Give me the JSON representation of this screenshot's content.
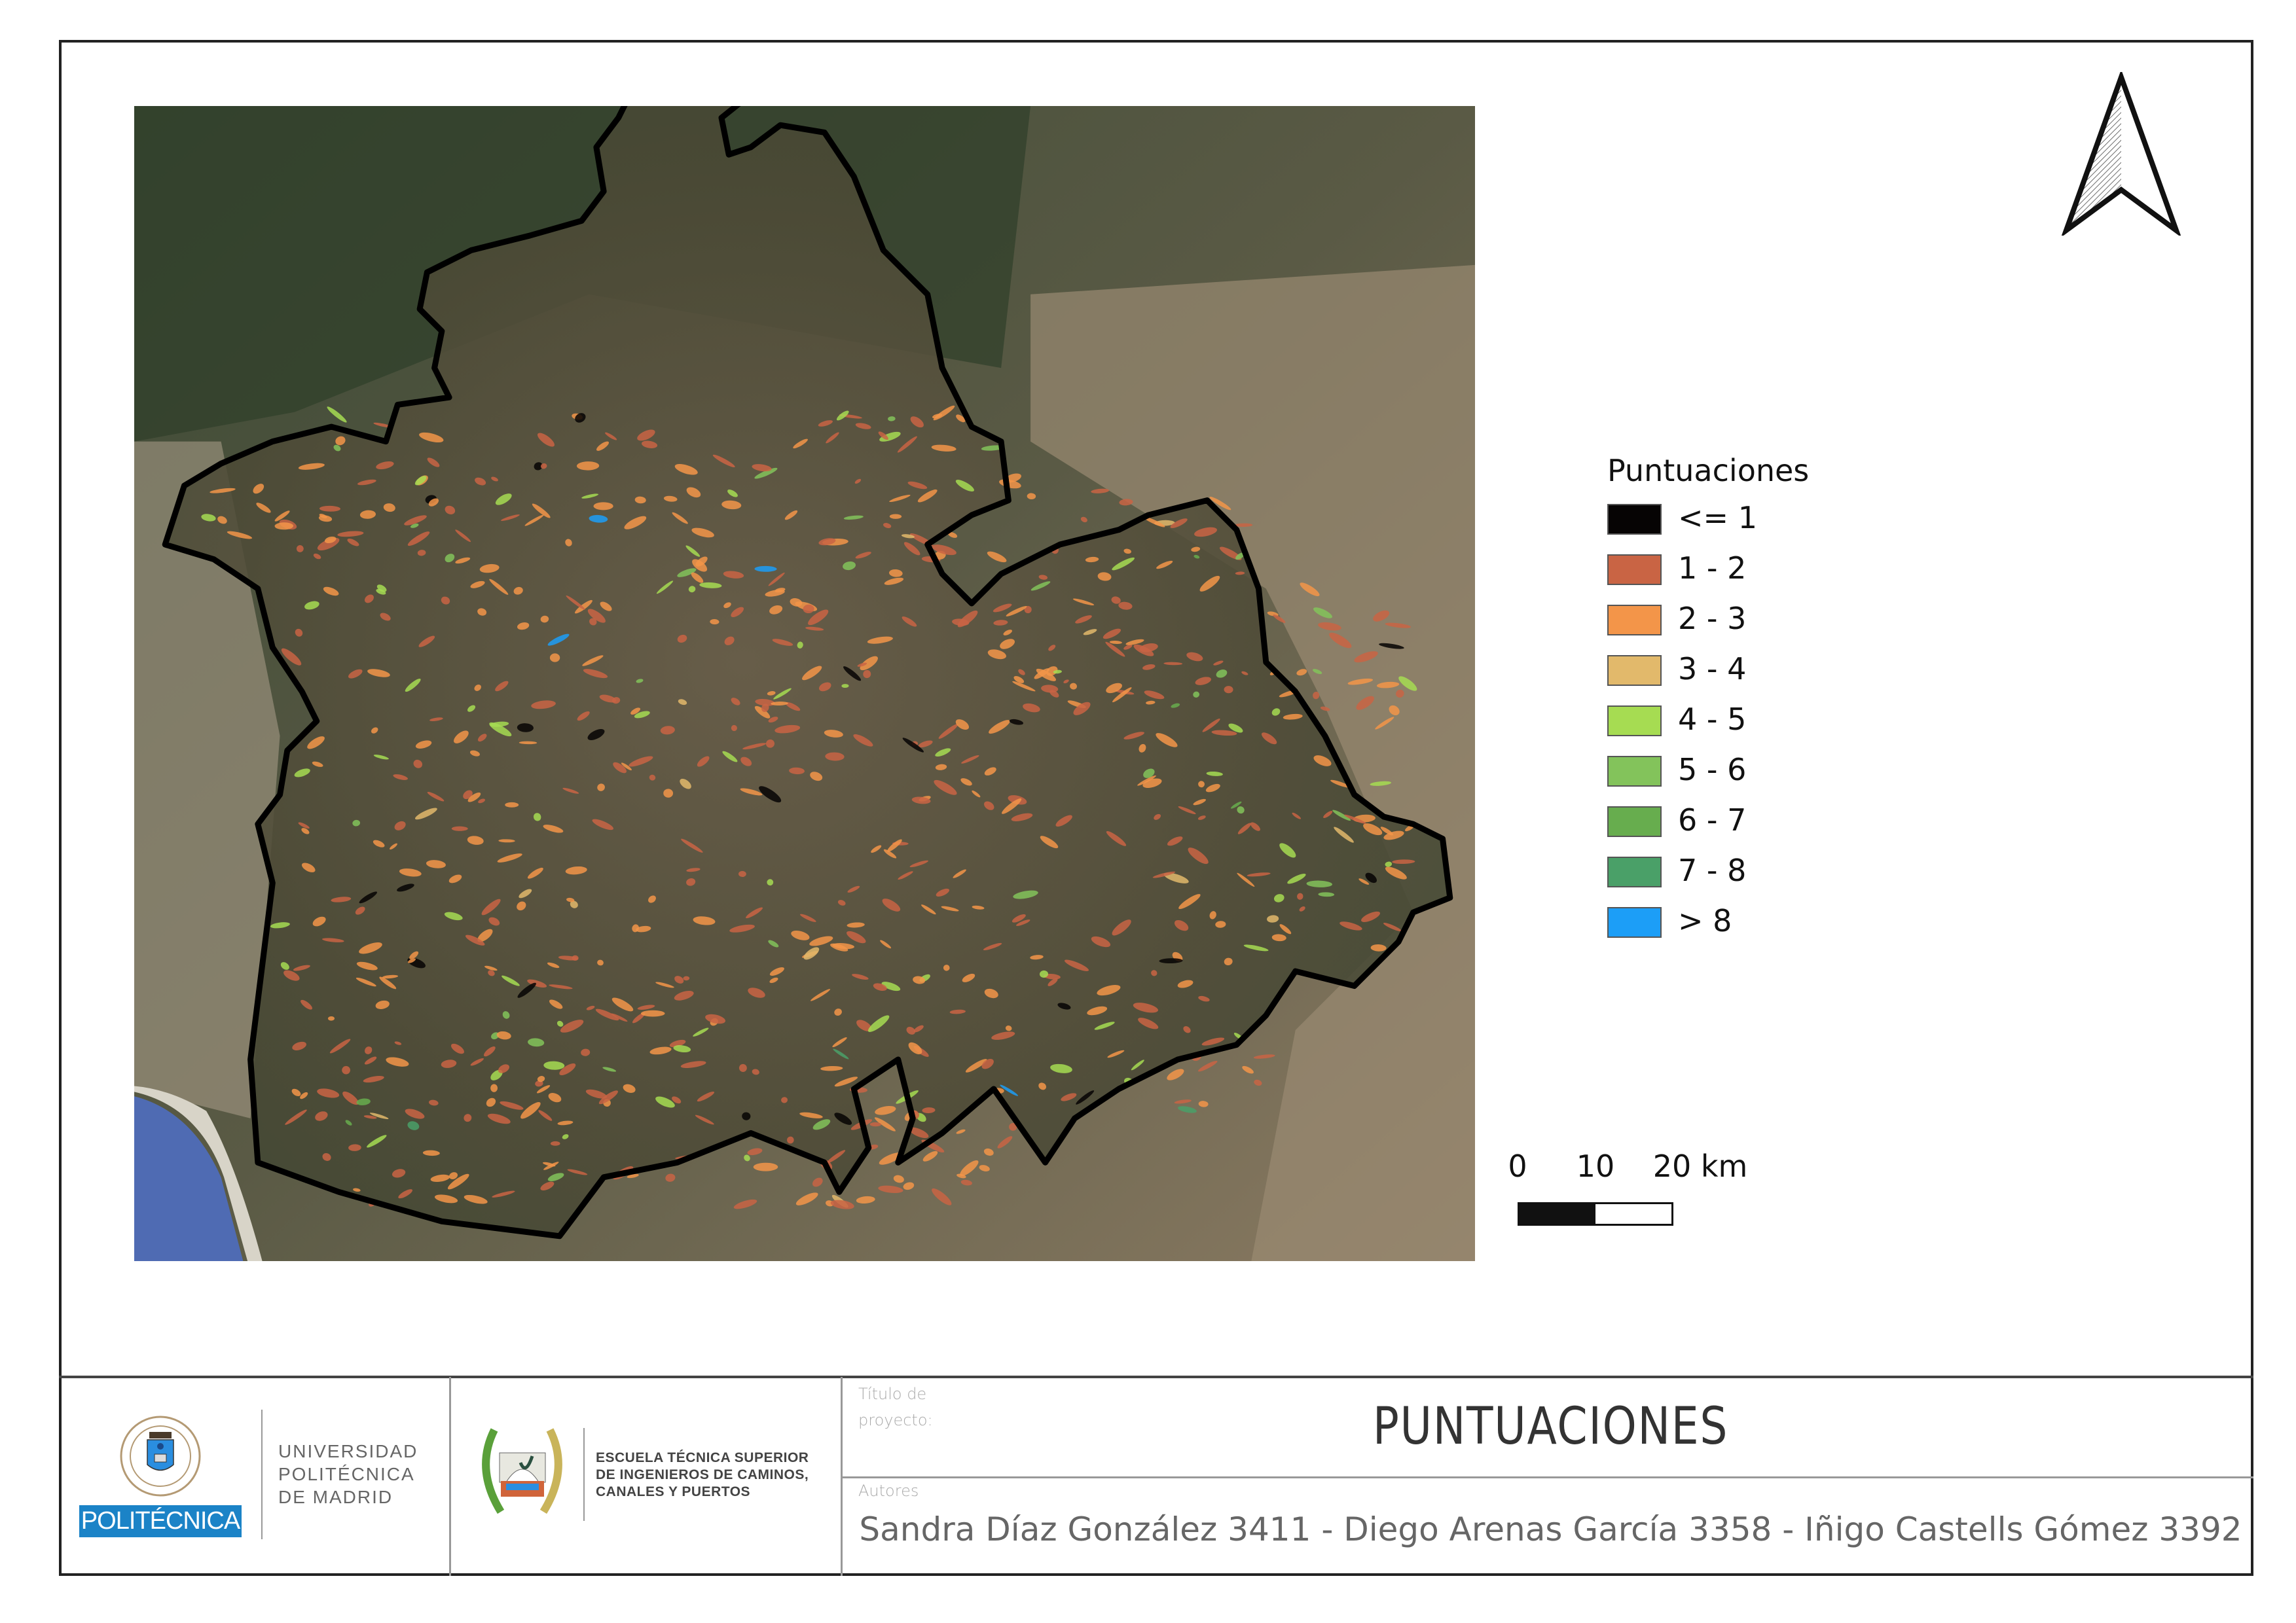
{
  "map": {
    "legend": {
      "title": "Puntuaciones",
      "items": [
        {
          "label": "<= 1",
          "color": "#060404"
        },
        {
          "label": "1 - 2",
          "color": "#c96444"
        },
        {
          "label": "2 - 3",
          "color": "#f39549"
        },
        {
          "label": "3 - 4",
          "color": "#e2b96b"
        },
        {
          "label": "4 - 5",
          "color": "#a6dc52"
        },
        {
          "label": "5 - 6",
          "color": "#83c35b"
        },
        {
          "label": "6 - 7",
          "color": "#67ad4e"
        },
        {
          "label": "7 - 8",
          "color": "#4aa068"
        },
        {
          "label": "> 8",
          "color": "#1c9ef7"
        }
      ]
    },
    "scale_bar": {
      "labels": [
        "0",
        "10",
        "20 km"
      ]
    },
    "north_arrow": "north-arrow-icon"
  },
  "title_block": {
    "university": {
      "badge": "POLITÉCNICA",
      "lines": [
        "UNIVERSIDAD",
        "POLITÉCNICA",
        "DE MADRID"
      ]
    },
    "school": {
      "lines": [
        "ESCUELA TÉCNICA SUPERIOR",
        "DE INGENIEROS DE CAMINOS,",
        "CANALES Y PUERTOS"
      ]
    },
    "title_label_1": "Título de",
    "title_label_2": "proyecto:",
    "title": "PUNTUACIONES",
    "authors_label": "Autores",
    "authors": "Sandra Díaz González 3411 - Diego Arenas García 3358 - Iñigo Castells Gómez 3392"
  }
}
